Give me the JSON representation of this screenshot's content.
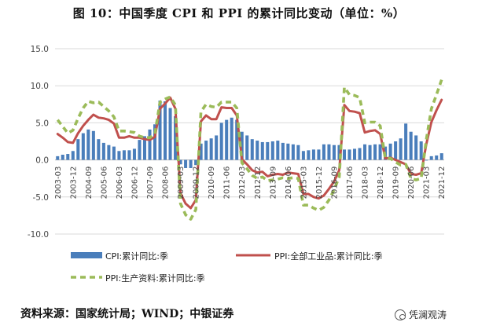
{
  "figure": {
    "title": "图 10：中国季度 CPI 和 PPI 的累计同比变动（单位：%）",
    "source": "资料来源：国家统计局；WIND；中银证券",
    "watermark": "凭澜观涛",
    "watermark_icon": "wechat-icon"
  },
  "chart_data": {
    "type": "bar",
    "title": "",
    "xlabel": "",
    "ylabel": "",
    "ylim": [
      -10,
      15
    ],
    "yticks": [
      -10,
      -5,
      0,
      5,
      10,
      15
    ],
    "ytick_labels": [
      "-10.0",
      "-5.0",
      "0.0",
      "5.0",
      "10.0",
      "15.0"
    ],
    "grid": true,
    "legend_position": "bottom",
    "x_tick_labels": [
      "2003-03",
      "2003-12",
      "2004-09",
      "2005-06",
      "2006-03",
      "2006-12",
      "2007-09",
      "2008-06",
      "2009-03",
      "2009-12",
      "2010-09",
      "2011-06",
      "2012-03",
      "2012-12",
      "2013-09",
      "2014-06",
      "2015-03",
      "2015-12",
      "2016-09",
      "2017-06",
      "2018-03",
      "2018-12",
      "2019-09",
      "2020-06",
      "2021-03",
      "2021-12"
    ],
    "categories": [
      "2003-03",
      "2003-06",
      "2003-09",
      "2003-12",
      "2004-03",
      "2004-06",
      "2004-09",
      "2004-12",
      "2005-03",
      "2005-06",
      "2005-09",
      "2005-12",
      "2006-03",
      "2006-06",
      "2006-09",
      "2006-12",
      "2007-03",
      "2007-06",
      "2007-09",
      "2007-12",
      "2008-03",
      "2008-06",
      "2008-09",
      "2008-12",
      "2009-03",
      "2009-06",
      "2009-09",
      "2009-12",
      "2010-03",
      "2010-06",
      "2010-09",
      "2010-12",
      "2011-03",
      "2011-06",
      "2011-09",
      "2011-12",
      "2012-03",
      "2012-06",
      "2012-09",
      "2012-12",
      "2013-03",
      "2013-06",
      "2013-09",
      "2013-12",
      "2014-03",
      "2014-06",
      "2014-09",
      "2014-12",
      "2015-03",
      "2015-06",
      "2015-09",
      "2015-12",
      "2016-03",
      "2016-06",
      "2016-09",
      "2016-12",
      "2017-03",
      "2017-06",
      "2017-09",
      "2017-12",
      "2018-03",
      "2018-06",
      "2018-09",
      "2018-12",
      "2019-03",
      "2019-06",
      "2019-09",
      "2019-12",
      "2020-03",
      "2020-06",
      "2020-09",
      "2020-12",
      "2021-03",
      "2021-06",
      "2021-09",
      "2021-12"
    ],
    "series": [
      {
        "name": "CPI:累计同比:季",
        "kind": "bar",
        "color": "#4a7ebb",
        "values": [
          0.5,
          0.7,
          0.8,
          1.2,
          2.8,
          3.6,
          4.1,
          3.9,
          2.8,
          2.3,
          2.0,
          1.8,
          1.2,
          1.3,
          1.3,
          1.5,
          2.7,
          3.2,
          4.1,
          4.8,
          8.0,
          7.9,
          7.0,
          5.9,
          -0.6,
          -1.1,
          -1.1,
          -0.7,
          2.2,
          2.6,
          2.9,
          3.3,
          5.0,
          5.4,
          5.7,
          5.4,
          3.8,
          3.3,
          2.8,
          2.6,
          2.4,
          2.4,
          2.5,
          2.6,
          2.3,
          2.2,
          2.1,
          2.0,
          1.2,
          1.3,
          1.4,
          1.4,
          2.1,
          2.1,
          2.0,
          2.0,
          1.4,
          1.4,
          1.5,
          1.6,
          2.1,
          2.0,
          2.1,
          2.1,
          1.8,
          2.2,
          2.5,
          2.9,
          4.9,
          3.8,
          3.3,
          2.5,
          0.0,
          0.5,
          0.6,
          0.9
        ]
      },
      {
        "name": "PPI:全部工业品:累计同比:季",
        "kind": "line",
        "style": "solid",
        "color": "#c0504d",
        "values": [
          3.5,
          3.0,
          2.4,
          2.3,
          3.6,
          4.6,
          5.4,
          6.1,
          5.7,
          5.6,
          5.4,
          4.9,
          3.0,
          3.0,
          3.2,
          3.0,
          3.0,
          2.8,
          2.7,
          3.1,
          6.9,
          7.6,
          8.4,
          6.9,
          -4.5,
          -5.9,
          -6.5,
          -5.4,
          5.2,
          6.0,
          5.5,
          5.5,
          7.1,
          7.0,
          7.0,
          6.0,
          0.1,
          -0.6,
          -1.4,
          -1.7,
          -1.6,
          -2.2,
          -2.0,
          -1.9,
          -2.0,
          -1.7,
          -1.8,
          -1.9,
          -4.6,
          -4.6,
          -5.0,
          -5.2,
          -4.8,
          -3.9,
          -2.9,
          -1.4,
          7.4,
          6.6,
          6.5,
          6.3,
          3.7,
          3.9,
          4.0,
          3.5,
          0.2,
          0.3,
          0.0,
          -0.3,
          -0.6,
          -1.9,
          -2.0,
          -1.8,
          2.1,
          5.1,
          6.7,
          8.1
        ]
      },
      {
        "name": "PPI:生产资料:累计同比:季",
        "kind": "line",
        "style": "dashed",
        "color": "#9bbb59",
        "values": [
          5.4,
          4.5,
          3.6,
          4.0,
          5.6,
          7.0,
          7.9,
          7.7,
          7.8,
          7.2,
          6.6,
          5.8,
          3.9,
          3.9,
          3.8,
          3.7,
          3.2,
          3.0,
          3.0,
          3.5,
          7.8,
          8.2,
          8.5,
          7.4,
          -5.9,
          -7.4,
          -8.0,
          -6.7,
          6.5,
          7.5,
          7.2,
          7.1,
          7.8,
          7.8,
          7.8,
          7.0,
          -0.4,
          -1.2,
          -2.1,
          -2.5,
          -2.3,
          -2.8,
          -2.7,
          -2.6,
          -2.4,
          -2.5,
          -2.4,
          -2.5,
          -6.1,
          -6.1,
          -6.5,
          -6.8,
          -6.4,
          -5.4,
          -4.0,
          -2.3,
          9.8,
          8.8,
          8.7,
          8.4,
          5.0,
          5.1,
          5.1,
          4.6,
          0.2,
          0.2,
          -0.3,
          -0.7,
          -0.6,
          -2.5,
          -2.7,
          -2.5,
          2.7,
          6.9,
          8.8,
          10.8
        ]
      }
    ]
  }
}
